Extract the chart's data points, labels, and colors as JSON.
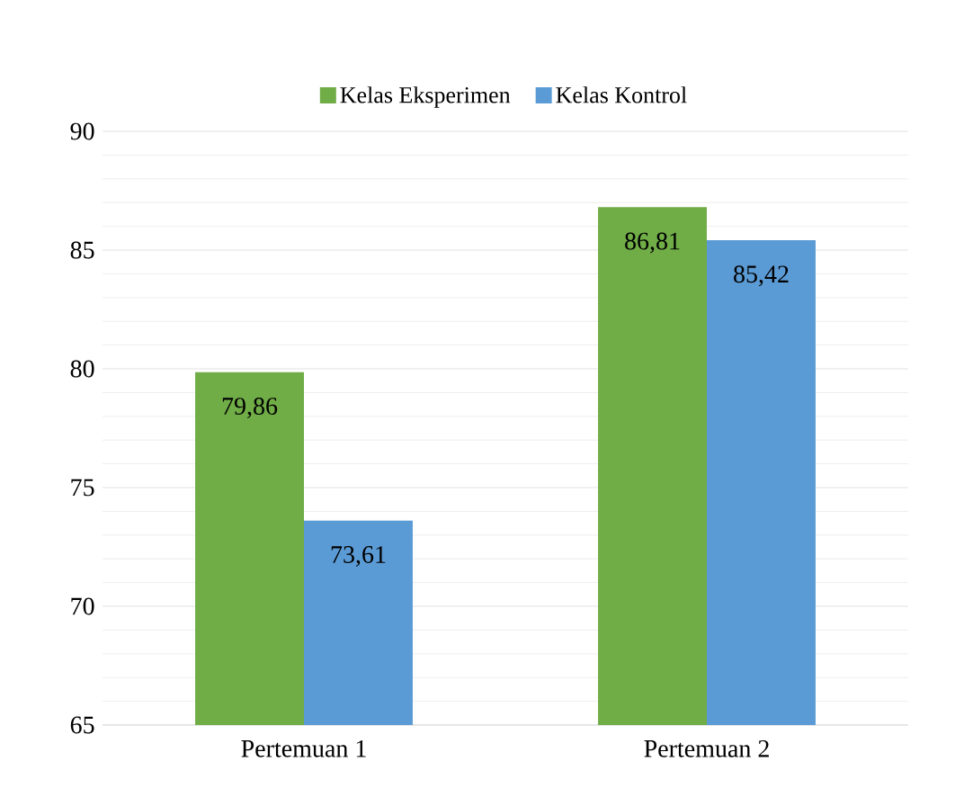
{
  "chart_data": {
    "type": "bar",
    "categories": [
      "Pertemuan 1",
      "Pertemuan 2"
    ],
    "series": [
      {
        "name": "Kelas Eksperimen",
        "color": "#70ad47",
        "values": [
          79.86,
          86.81
        ],
        "value_labels": [
          "79,86",
          "86,81"
        ]
      },
      {
        "name": "Kelas Kontrol",
        "color": "#5b9bd5",
        "values": [
          73.61,
          85.42
        ],
        "value_labels": [
          "73,61",
          "85,42"
        ]
      }
    ],
    "ylim": [
      65,
      90
    ],
    "yticks": [
      65,
      70,
      75,
      80,
      85,
      90
    ],
    "grid": "y",
    "legend": "top"
  }
}
